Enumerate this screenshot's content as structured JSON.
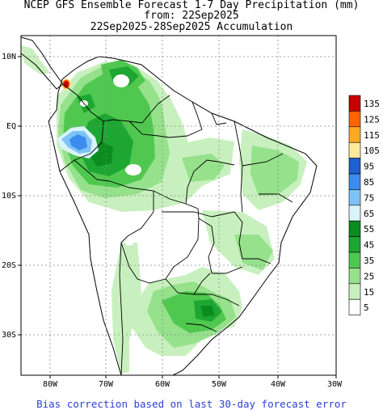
{
  "titles": {
    "line1": "NCEP GFS Ensemble Forecast 1-7 Day Precipitation (mm)",
    "line2": "from: 22Sep2025",
    "line3": "22Sep2025-28Sep2025 Accumulation"
  },
  "footer": "Bias correction based on last 30-day forecast error",
  "axes": {
    "lon_ticks": [
      "80W",
      "70W",
      "60W",
      "50W",
      "40W",
      "30W"
    ],
    "lat_ticks": [
      "10N",
      "EQ",
      "10S",
      "20S",
      "30S"
    ]
  },
  "legend": [
    {
      "label": "135",
      "color": "#c80000"
    },
    {
      "label": "125",
      "color": "#ff6400"
    },
    {
      "label": "115",
      "color": "#ffaa22"
    },
    {
      "label": "105",
      "color": "#ffe89a"
    },
    {
      "label": "95",
      "color": "#1e5fd2"
    },
    {
      "label": "85",
      "color": "#3c8cf0"
    },
    {
      "label": "75",
      "color": "#7dc3f5"
    },
    {
      "label": "65",
      "color": "#d8f4f8"
    },
    {
      "label": "55",
      "color": "#0a8c1e"
    },
    {
      "label": "45",
      "color": "#1ea632"
    },
    {
      "label": "35",
      "color": "#50c850"
    },
    {
      "label": "25",
      "color": "#96e18c"
    },
    {
      "label": "15",
      "color": "#c8f0be"
    },
    {
      "label": "5",
      "color": "#ffffff"
    }
  ],
  "colors": {
    "bias_text": "#2a3fd0",
    "coast": "#000000",
    "grid": "#888888"
  }
}
